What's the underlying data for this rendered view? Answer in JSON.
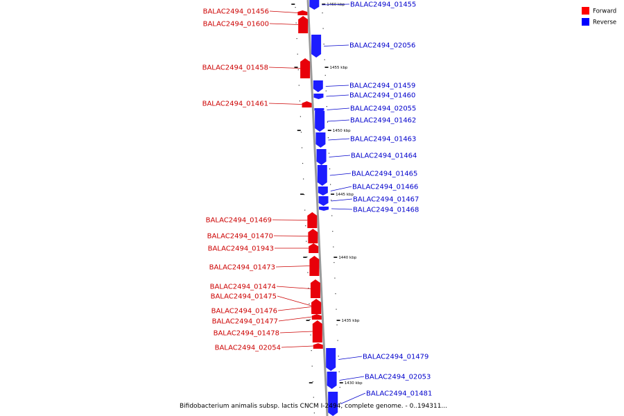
{
  "caption": "Bifidobacterium animalis subsp. lactis CNCM I-2494, complete genome. - 0..194311...",
  "legend": [
    {
      "label": "Forward",
      "color": "#ff0000"
    },
    {
      "label": "Reverse",
      "color": "#0000ff"
    }
  ],
  "colors": {
    "forward": "#e8000a",
    "forward_label": "#cc0000",
    "reverse": "#1c1cff",
    "reverse_label": "#0000cc",
    "backbone": "#9a9a9a"
  },
  "scale_labels": [
    "1460 kbp",
    "1455 kbp",
    "1450 kbp",
    "1445 kbp",
    "1440 kbp",
    "1435 kbp",
    "1430 kbp"
  ],
  "forward_genes": [
    "BALAC2494_01456",
    "BALAC2494_01600",
    "BALAC2494_01458",
    "BALAC2494_01461",
    "BALAC2494_01469",
    "BALAC2494_01470",
    "BALAC2494_01943",
    "BALAC2494_01473",
    "BALAC2494_01474",
    "BALAC2494_01475",
    "BALAC2494_01476",
    "BALAC2494_01477",
    "BALAC2494_01478",
    "BALAC2494_02054"
  ],
  "reverse_genes": [
    "BALAC2494_01455",
    "BALAC2494_02056",
    "BALAC2494_01459",
    "BALAC2494_01460",
    "BALAC2494_02055",
    "BALAC2494_01462",
    "BALAC2494_01463",
    "BALAC2494_01464",
    "BALAC2494_01465",
    "BALAC2494_01466",
    "BALAC2494_01467",
    "BALAC2494_01468",
    "BALAC2494_01479",
    "BALAC2494_02053",
    "BALAC2494_01481"
  ]
}
